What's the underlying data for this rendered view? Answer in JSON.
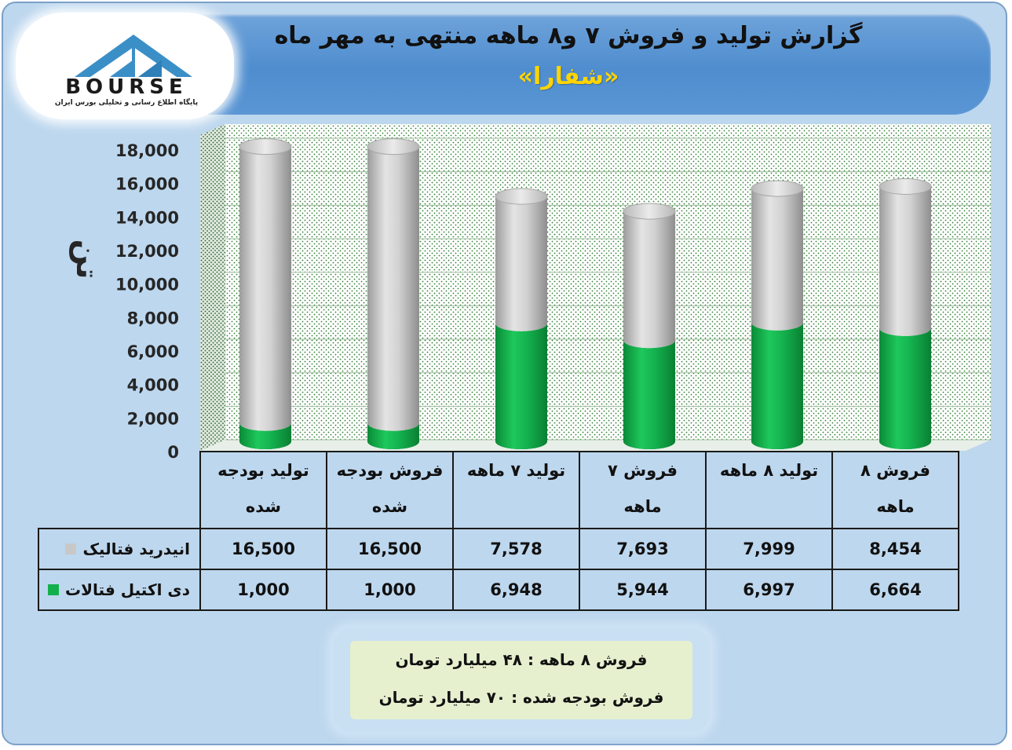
{
  "title": {
    "main": "گزارش تولید و فروش ۷ و۸ ماهه منتهی به مهر ماه",
    "sub": "«شفارا»"
  },
  "logo": {
    "word": "BOURSE",
    "tagline": "پایگاه اطلاع رسانی و تحلیلی بورس ایران"
  },
  "colors": {
    "series_gray": "#c8c8c8",
    "series_green": "#12b04c",
    "title_band": "#5b9bd5",
    "subtitle": "#ffd400"
  },
  "chart_data": {
    "type": "bar",
    "stacked": true,
    "three_d": "cylinder",
    "ylabel": "تن",
    "ylim": [
      0,
      18000
    ],
    "yticks": [
      "0",
      "2,000",
      "4,000",
      "6,000",
      "8,000",
      "10,000",
      "12,000",
      "14,000",
      "16,000",
      "18,000"
    ],
    "grid": true,
    "categories": [
      [
        "تولید بودجه",
        "شده"
      ],
      [
        "فروش بودجه",
        "شده"
      ],
      [
        "تولید ۷ ماهه"
      ],
      [
        "فروش ۷",
        "ماهه"
      ],
      [
        "تولید ۸ ماهه"
      ],
      [
        "فروش ۸",
        "ماهه"
      ]
    ],
    "series": [
      {
        "name": "انیدرید فتالیک",
        "color": "#c8c8c8",
        "values": [
          16500,
          16500,
          7578,
          7693,
          7999,
          8454
        ],
        "labels": [
          "16,500",
          "16,500",
          "7,578",
          "7,693",
          "7,999",
          "8,454"
        ]
      },
      {
        "name": "دی اکتیل فتالات",
        "color": "#12b04c",
        "values": [
          1000,
          1000,
          6948,
          5944,
          6997,
          6664
        ],
        "labels": [
          "1,000",
          "1,000",
          "6,948",
          "5,944",
          "6,997",
          "6,664"
        ]
      }
    ]
  },
  "notes": {
    "line1": "فروش ۸ ماهه : ۴۸ میلیارد تومان",
    "line2": "فروش بودجه شده : ۷۰ میلیارد تومان"
  }
}
